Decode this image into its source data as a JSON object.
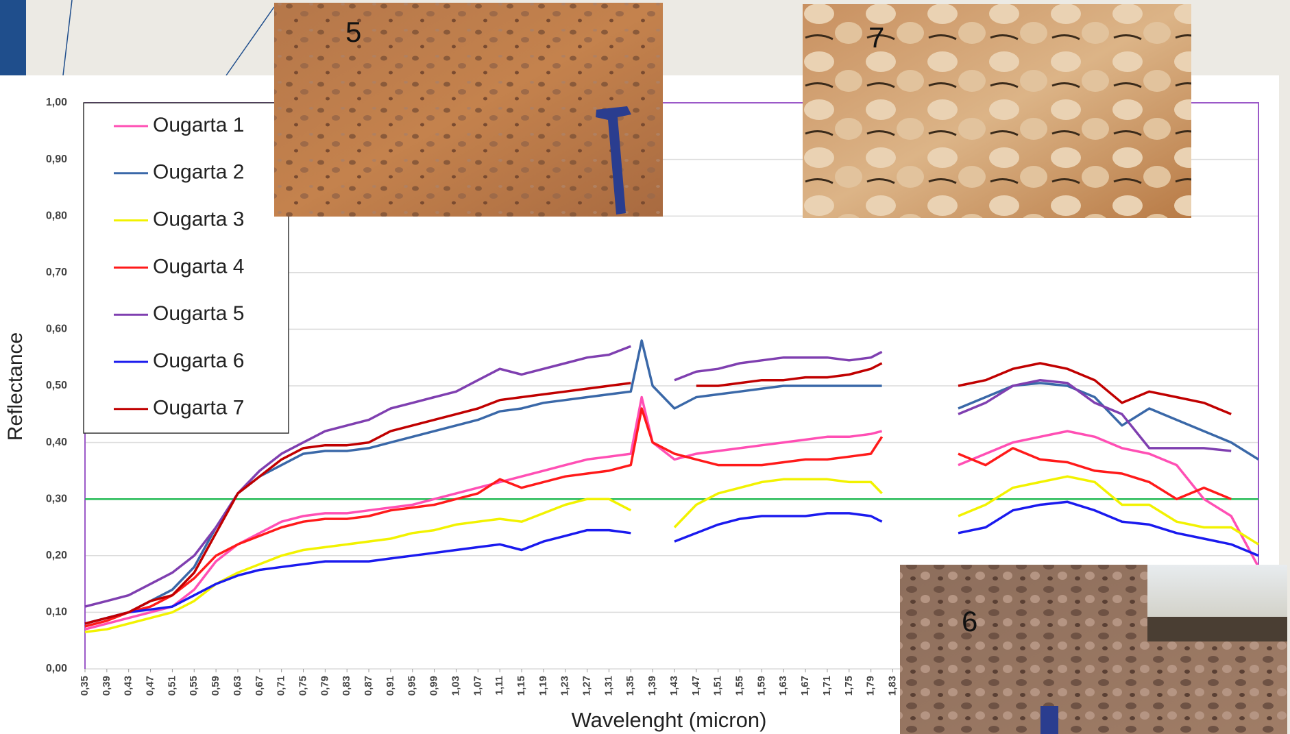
{
  "chart_data": {
    "type": "line",
    "y_label": "Reflectance",
    "x_label": "Wavelenght (micron)",
    "x": [
      0.35,
      0.39,
      0.43,
      0.47,
      0.51,
      0.55,
      0.59,
      0.63,
      0.67,
      0.71,
      0.75,
      0.79,
      0.83,
      0.87,
      0.91,
      0.95,
      0.99,
      1.03,
      1.07,
      1.11,
      1.15,
      1.19,
      1.23,
      1.27,
      1.31,
      1.35,
      1.37,
      1.39,
      1.43,
      1.47,
      1.51,
      1.55,
      1.59,
      1.63,
      1.67,
      1.71,
      1.75,
      1.79,
      1.81,
      1.87,
      1.95,
      2.0,
      2.05,
      2.1,
      2.15,
      2.2,
      2.25,
      2.3,
      2.35,
      2.4,
      2.45,
      2.5
    ],
    "series": [
      {
        "name": "Ougarta 1",
        "color": "#ff4fb4",
        "values": [
          0.07,
          0.08,
          0.09,
          0.1,
          0.11,
          0.14,
          0.19,
          0.22,
          0.24,
          0.26,
          0.27,
          0.275,
          0.275,
          0.28,
          0.285,
          0.29,
          0.3,
          0.31,
          0.32,
          0.33,
          0.34,
          0.35,
          0.36,
          0.37,
          0.375,
          0.38,
          0.48,
          0.4,
          0.37,
          0.38,
          0.385,
          0.39,
          0.395,
          0.4,
          0.405,
          0.41,
          0.41,
          0.415,
          0.42,
          null,
          0.36,
          0.38,
          0.4,
          0.41,
          0.42,
          0.41,
          0.39,
          0.38,
          0.36,
          0.3,
          0.27,
          0.18
        ]
      },
      {
        "name": "Ougarta 2",
        "color": "#3a68a8",
        "values": [
          0.08,
          0.09,
          0.1,
          0.12,
          0.14,
          0.18,
          0.25,
          0.31,
          0.34,
          0.36,
          0.38,
          0.385,
          0.385,
          0.39,
          0.4,
          0.41,
          0.42,
          0.43,
          0.44,
          0.455,
          0.46,
          0.47,
          0.475,
          0.48,
          0.485,
          0.49,
          0.58,
          0.5,
          0.46,
          0.48,
          0.485,
          0.49,
          0.495,
          0.5,
          0.5,
          0.5,
          0.5,
          0.5,
          0.5,
          null,
          0.46,
          0.48,
          0.5,
          0.505,
          0.5,
          0.48,
          0.43,
          0.46,
          0.44,
          0.42,
          0.4,
          0.37
        ]
      },
      {
        "name": "Ougarta 3",
        "color": "#f2f200",
        "values": [
          0.065,
          0.07,
          0.08,
          0.09,
          0.1,
          0.12,
          0.15,
          0.17,
          0.185,
          0.2,
          0.21,
          0.215,
          0.22,
          0.225,
          0.23,
          0.24,
          0.245,
          0.255,
          0.26,
          0.265,
          0.26,
          0.275,
          0.29,
          0.3,
          0.3,
          0.28,
          null,
          null,
          0.25,
          0.29,
          0.31,
          0.32,
          0.33,
          0.335,
          0.335,
          0.335,
          0.33,
          0.33,
          0.31,
          null,
          0.27,
          0.29,
          0.32,
          0.33,
          0.34,
          0.33,
          0.29,
          0.29,
          0.26,
          0.25,
          0.25,
          0.22
        ]
      },
      {
        "name": "Ougarta 4",
        "color": "#ff1a1a",
        "values": [
          0.075,
          0.085,
          0.1,
          0.11,
          0.13,
          0.16,
          0.2,
          0.22,
          0.235,
          0.25,
          0.26,
          0.265,
          0.265,
          0.27,
          0.28,
          0.285,
          0.29,
          0.3,
          0.31,
          0.335,
          0.32,
          0.33,
          0.34,
          0.345,
          0.35,
          0.36,
          0.46,
          0.4,
          0.38,
          0.37,
          0.36,
          0.36,
          0.36,
          0.365,
          0.37,
          0.37,
          0.375,
          0.38,
          0.41,
          null,
          0.38,
          0.36,
          0.39,
          0.37,
          0.365,
          0.35,
          0.345,
          0.33,
          0.3,
          0.32,
          0.3,
          null
        ]
      },
      {
        "name": "Ougarta 5",
        "color": "#7f3fb0",
        "values": [
          0.11,
          0.12,
          0.13,
          0.15,
          0.17,
          0.2,
          0.25,
          0.31,
          0.35,
          0.38,
          0.4,
          0.42,
          0.43,
          0.44,
          0.46,
          0.47,
          0.48,
          0.49,
          0.51,
          0.53,
          0.52,
          0.53,
          0.54,
          0.55,
          0.555,
          0.57,
          null,
          null,
          0.51,
          0.525,
          0.53,
          0.54,
          0.545,
          0.55,
          0.55,
          0.55,
          0.545,
          0.55,
          0.56,
          null,
          0.45,
          0.47,
          0.5,
          0.51,
          0.505,
          0.47,
          0.45,
          0.39,
          0.39,
          0.39,
          0.385,
          null
        ]
      },
      {
        "name": "Ougarta 6",
        "color": "#1a1aee",
        "values": [
          0.08,
          0.09,
          0.1,
          0.105,
          0.11,
          0.13,
          0.15,
          0.165,
          0.175,
          0.18,
          0.185,
          0.19,
          0.19,
          0.19,
          0.195,
          0.2,
          0.205,
          0.21,
          0.215,
          0.22,
          0.21,
          0.225,
          0.235,
          0.245,
          0.245,
          0.24,
          null,
          null,
          0.225,
          0.24,
          0.255,
          0.265,
          0.27,
          0.27,
          0.27,
          0.275,
          0.275,
          0.27,
          0.26,
          null,
          0.24,
          0.25,
          0.28,
          0.29,
          0.295,
          0.28,
          0.26,
          0.255,
          0.24,
          0.23,
          0.22,
          0.2
        ]
      },
      {
        "name": "Ougarta 7",
        "color": "#c00000",
        "values": [
          0.08,
          0.09,
          0.1,
          0.12,
          0.13,
          0.17,
          0.24,
          0.31,
          0.34,
          0.37,
          0.39,
          0.395,
          0.395,
          0.4,
          0.42,
          0.43,
          0.44,
          0.45,
          0.46,
          0.475,
          0.48,
          0.485,
          0.49,
          0.495,
          0.5,
          0.505,
          null,
          null,
          null,
          0.5,
          0.5,
          0.505,
          0.51,
          0.51,
          0.515,
          0.515,
          0.52,
          0.53,
          0.54,
          null,
          0.5,
          0.51,
          0.53,
          0.54,
          0.53,
          0.51,
          0.47,
          0.49,
          0.48,
          0.47,
          0.45,
          null
        ]
      }
    ],
    "reference_line": {
      "value": 0.3,
      "color": "#22bb55"
    },
    "xlim": [
      0.35,
      2.5
    ],
    "ylim": [
      0,
      1
    ],
    "xticks": [
      {
        "value": 0.35,
        "label": "0,35"
      },
      {
        "value": 0.39,
        "label": "0,39"
      },
      {
        "value": 0.43,
        "label": "0,43"
      },
      {
        "value": 0.47,
        "label": "0,47"
      },
      {
        "value": 0.51,
        "label": "0,51"
      },
      {
        "value": 0.55,
        "label": "0,55"
      },
      {
        "value": 0.59,
        "label": "0,59"
      },
      {
        "value": 0.63,
        "label": "0,63"
      },
      {
        "value": 0.67,
        "label": "0,67"
      },
      {
        "value": 0.71,
        "label": "0,71"
      },
      {
        "value": 0.75,
        "label": "0,75"
      },
      {
        "value": 0.79,
        "label": "0,79"
      },
      {
        "value": 0.83,
        "label": "0,83"
      },
      {
        "value": 0.87,
        "label": "0,87"
      },
      {
        "value": 0.91,
        "label": "0,91"
      },
      {
        "value": 0.95,
        "label": "0,95"
      },
      {
        "value": 0.99,
        "label": "0,99"
      },
      {
        "value": 1.03,
        "label": "1,03"
      },
      {
        "value": 1.07,
        "label": "1,07"
      },
      {
        "value": 1.11,
        "label": "1,11"
      },
      {
        "value": 1.15,
        "label": "1,15"
      },
      {
        "value": 1.19,
        "label": "1,19"
      },
      {
        "value": 1.23,
        "label": "1,23"
      },
      {
        "value": 1.27,
        "label": "1,27"
      },
      {
        "value": 1.31,
        "label": "1,31"
      },
      {
        "value": 1.35,
        "label": "1,35"
      },
      {
        "value": 1.39,
        "label": "1,39"
      },
      {
        "value": 1.43,
        "label": "1,43"
      },
      {
        "value": 1.47,
        "label": "1,47"
      },
      {
        "value": 1.51,
        "label": "1,51"
      },
      {
        "value": 1.55,
        "label": "1,55"
      },
      {
        "value": 1.59,
        "label": "1,59"
      },
      {
        "value": 1.63,
        "label": "1,63"
      },
      {
        "value": 1.67,
        "label": "1,67"
      },
      {
        "value": 1.71,
        "label": "1,71"
      },
      {
        "value": 1.75,
        "label": "1,75"
      },
      {
        "value": 1.79,
        "label": "1,79"
      },
      {
        "value": 1.83,
        "label": "1,83"
      }
    ],
    "yticks": [
      {
        "value": 0,
        "label": "0,00"
      },
      {
        "value": 0.1,
        "label": "0,10"
      },
      {
        "value": 0.2,
        "label": "0,20"
      },
      {
        "value": 0.3,
        "label": "0,30"
      },
      {
        "value": 0.4,
        "label": "0,40"
      },
      {
        "value": 0.5,
        "label": "0,50"
      },
      {
        "value": 0.6,
        "label": "0,60"
      },
      {
        "value": 0.7,
        "label": "0,70"
      },
      {
        "value": 0.8,
        "label": "0,80"
      },
      {
        "value": 0.9,
        "label": "0,90"
      },
      {
        "value": 1,
        "label": "1,00"
      }
    ],
    "grid": true,
    "legend": "upper left"
  },
  "photos": [
    {
      "label": "5"
    },
    {
      "label": "7"
    },
    {
      "label": "6"
    }
  ]
}
